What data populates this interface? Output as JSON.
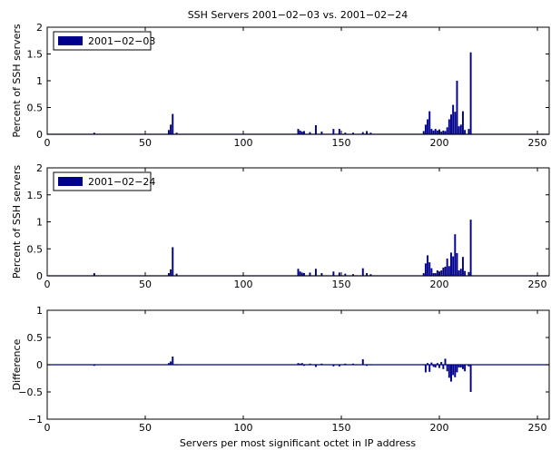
{
  "chart_data": {
    "type": "bar",
    "title": "SSH Servers 2001−02−03 vs. 2001−02−24",
    "xlabel": "Servers per most significant octet in IP address",
    "xlim": [
      0,
      256
    ],
    "xticks": [
      0,
      50,
      100,
      150,
      200,
      250
    ],
    "color": "#00008b",
    "panels": [
      {
        "legend": "2001−02−03",
        "legend_position": "top-left",
        "ylabel": "Percent of SSH servers",
        "ylim": [
          0,
          2
        ],
        "yticks": [
          "0",
          "0.5",
          "1",
          "1.5",
          "2"
        ],
        "bars": [
          [
            24,
            0.03
          ],
          [
            62,
            0.08
          ],
          [
            63,
            0.18
          ],
          [
            64,
            0.38
          ],
          [
            66,
            0.03
          ],
          [
            128,
            0.1
          ],
          [
            129,
            0.07
          ],
          [
            130,
            0.05
          ],
          [
            131,
            0.06
          ],
          [
            134,
            0.04
          ],
          [
            137,
            0.17
          ],
          [
            140,
            0.05
          ],
          [
            146,
            0.1
          ],
          [
            149,
            0.1
          ],
          [
            152,
            0.03
          ],
          [
            156,
            0.03
          ],
          [
            161,
            0.04
          ],
          [
            163,
            0.06
          ],
          [
            165,
            0.03
          ],
          [
            192,
            0.06
          ],
          [
            193,
            0.18
          ],
          [
            194,
            0.28
          ],
          [
            195,
            0.43
          ],
          [
            196,
            0.1
          ],
          [
            197,
            0.07
          ],
          [
            198,
            0.1
          ],
          [
            199,
            0.07
          ],
          [
            200,
            0.09
          ],
          [
            201,
            0.05
          ],
          [
            202,
            0.07
          ],
          [
            203,
            0.06
          ],
          [
            204,
            0.13
          ],
          [
            205,
            0.28
          ],
          [
            206,
            0.37
          ],
          [
            207,
            0.55
          ],
          [
            208,
            0.42
          ],
          [
            209,
            1.0
          ],
          [
            210,
            0.15
          ],
          [
            211,
            0.18
          ],
          [
            212,
            0.43
          ],
          [
            213,
            0.08
          ],
          [
            215,
            0.1
          ],
          [
            216,
            1.53
          ]
        ]
      },
      {
        "legend": "2001−02−24",
        "legend_position": "top-left",
        "ylabel": "Percent of SSH servers",
        "ylim": [
          0,
          2
        ],
        "yticks": [
          "0",
          "0.5",
          "1",
          "1.5",
          "2"
        ],
        "bars": [
          [
            24,
            0.05
          ],
          [
            62,
            0.05
          ],
          [
            63,
            0.12
          ],
          [
            64,
            0.53
          ],
          [
            66,
            0.04
          ],
          [
            128,
            0.13
          ],
          [
            129,
            0.08
          ],
          [
            130,
            0.06
          ],
          [
            131,
            0.05
          ],
          [
            134,
            0.06
          ],
          [
            137,
            0.13
          ],
          [
            140,
            0.05
          ],
          [
            146,
            0.08
          ],
          [
            149,
            0.06
          ],
          [
            152,
            0.04
          ],
          [
            156,
            0.03
          ],
          [
            161,
            0.14
          ],
          [
            163,
            0.05
          ],
          [
            165,
            0.03
          ],
          [
            192,
            0.05
          ],
          [
            193,
            0.23
          ],
          [
            194,
            0.38
          ],
          [
            195,
            0.25
          ],
          [
            196,
            0.14
          ],
          [
            197,
            0.05
          ],
          [
            198,
            0.05
          ],
          [
            199,
            0.1
          ],
          [
            200,
            0.08
          ],
          [
            201,
            0.1
          ],
          [
            202,
            0.15
          ],
          [
            203,
            0.17
          ],
          [
            204,
            0.32
          ],
          [
            205,
            0.18
          ],
          [
            206,
            0.43
          ],
          [
            207,
            0.36
          ],
          [
            208,
            0.77
          ],
          [
            209,
            0.42
          ],
          [
            210,
            0.1
          ],
          [
            211,
            0.13
          ],
          [
            212,
            0.35
          ],
          [
            213,
            0.09
          ],
          [
            215,
            0.07
          ],
          [
            216,
            1.04
          ]
        ]
      },
      {
        "legend": "",
        "ylabel": "Difference",
        "ylim": [
          -1,
          1
        ],
        "yticks": [
          "−1",
          "−0.5",
          "0",
          "0.5",
          "1"
        ],
        "bars": [
          [
            24,
            -0.02
          ],
          [
            62,
            0.03
          ],
          [
            63,
            0.06
          ],
          [
            64,
            0.15
          ],
          [
            66,
            0.01
          ],
          [
            128,
            0.03
          ],
          [
            129,
            0.02
          ],
          [
            130,
            0.03
          ],
          [
            131,
            -0.02
          ],
          [
            134,
            0.02
          ],
          [
            137,
            -0.04
          ],
          [
            140,
            0.02
          ],
          [
            146,
            -0.03
          ],
          [
            149,
            -0.03
          ],
          [
            152,
            0.02
          ],
          [
            156,
            0.02
          ],
          [
            161,
            0.1
          ],
          [
            163,
            -0.02
          ],
          [
            165,
            0.01
          ],
          [
            192,
            -0.01
          ],
          [
            193,
            -0.14
          ],
          [
            194,
            0.03
          ],
          [
            195,
            -0.13
          ],
          [
            196,
            0.04
          ],
          [
            197,
            -0.04
          ],
          [
            198,
            -0.05
          ],
          [
            199,
            0.03
          ],
          [
            200,
            -0.06
          ],
          [
            201,
            0.05
          ],
          [
            202,
            -0.08
          ],
          [
            203,
            0.11
          ],
          [
            204,
            -0.12
          ],
          [
            205,
            -0.24
          ],
          [
            206,
            -0.31
          ],
          [
            207,
            -0.19
          ],
          [
            208,
            -0.23
          ],
          [
            209,
            -0.14
          ],
          [
            210,
            -0.05
          ],
          [
            211,
            -0.05
          ],
          [
            212,
            -0.08
          ],
          [
            213,
            -0.12
          ],
          [
            215,
            -0.03
          ],
          [
            216,
            -0.5
          ]
        ]
      }
    ]
  }
}
